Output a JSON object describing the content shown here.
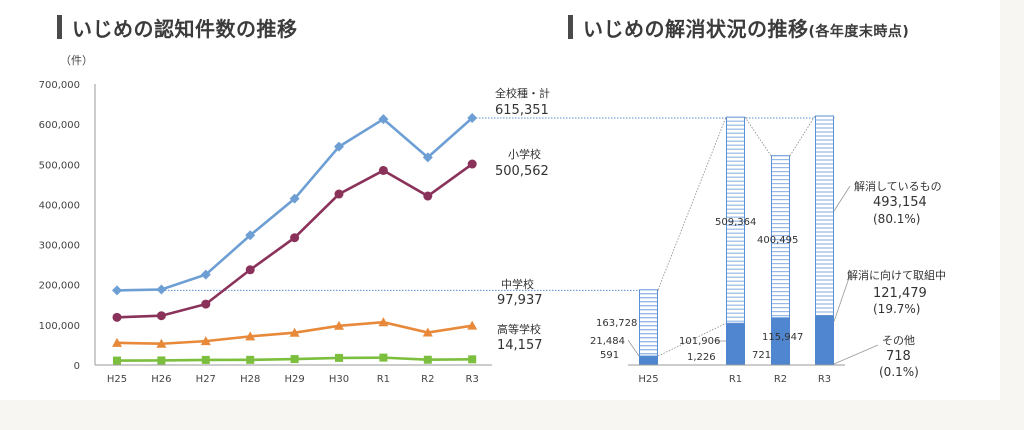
{
  "left_chart": {
    "title": "いじめの認知件数の推移",
    "y_unit": "（件）",
    "chart_data": {
      "type": "line",
      "categories": [
        "H25",
        "H26",
        "H27",
        "H28",
        "H29",
        "H30",
        "R1",
        "R2",
        "R3"
      ],
      "y_ticks": [
        "0",
        "100,000",
        "200,000",
        "300,000",
        "400,000",
        "500,000",
        "600,000",
        "700,000"
      ],
      "ylim": [
        0,
        700000
      ],
      "series": [
        {
          "name": "全校種・計",
          "value_label": "615,351",
          "color": "#6e9fd4",
          "marker": "diamond",
          "values": [
            185803,
            188072,
            225132,
            323143,
            414378,
            543933,
            612496,
            517163,
            615351
          ]
        },
        {
          "name": "小学校",
          "value_label": "500,562",
          "color": "#8a3259",
          "marker": "circle",
          "values": [
            118748,
            122734,
            151692,
            237256,
            317121,
            425844,
            484545,
            420897,
            500562
          ]
        },
        {
          "name": "中学校",
          "value_label": "97,937",
          "color": "#e8893a",
          "marker": "triangle",
          "values": [
            55248,
            52971,
            59502,
            71309,
            80424,
            97704,
            106524,
            80877,
            97937
          ]
        },
        {
          "name": "高等学校",
          "value_label": "14,157",
          "color": "#7cbf3e",
          "marker": "square",
          "values": [
            11039,
            11404,
            12664,
            12874,
            14789,
            17709,
            18352,
            13126,
            14157
          ]
        }
      ]
    }
  },
  "right_chart": {
    "title": "いじめの解消状況の推移",
    "title_sub": "(各年度末時点)",
    "chart_data": {
      "type": "bar",
      "stacked": true,
      "categories": [
        "H25",
        "R1",
        "R2",
        "R3"
      ],
      "series": [
        {
          "name": "解消しているもの",
          "values": [
            163728,
            509364,
            400495,
            493154
          ]
        },
        {
          "name": "解消に向けて取組中",
          "values": [
            21484,
            101906,
            115947,
            121479
          ]
        },
        {
          "name": "その他",
          "values": [
            591,
            1226,
            721,
            718
          ]
        }
      ],
      "bar_labels": {
        "h25_resolved": "163,728",
        "h25_ongoing": "21,484",
        "h25_other": "591",
        "r1_resolved": "509,364",
        "r1_ongoing": "101,906",
        "r1_other": "1,226",
        "r2_resolved": "400,495",
        "r2_ongoing": "115,947",
        "r2_other": "721"
      },
      "annotations": {
        "resolved_name": "解消しているもの",
        "resolved_value": "493,154",
        "resolved_pct": "(80.1%)",
        "ongoing_name": "解消に向けて取組中",
        "ongoing_value": "121,479",
        "ongoing_pct": "(19.7%)",
        "other_name": "その他",
        "other_value": "718",
        "other_pct": "(0.1%)"
      }
    }
  },
  "colors": {
    "total": "#6e9fd4",
    "elementary": "#8a3259",
    "junior_high": "#e8893a",
    "high": "#7cbf3e",
    "bar_solid": "#4f86cf",
    "bar_outline": "#5b8fd6"
  }
}
